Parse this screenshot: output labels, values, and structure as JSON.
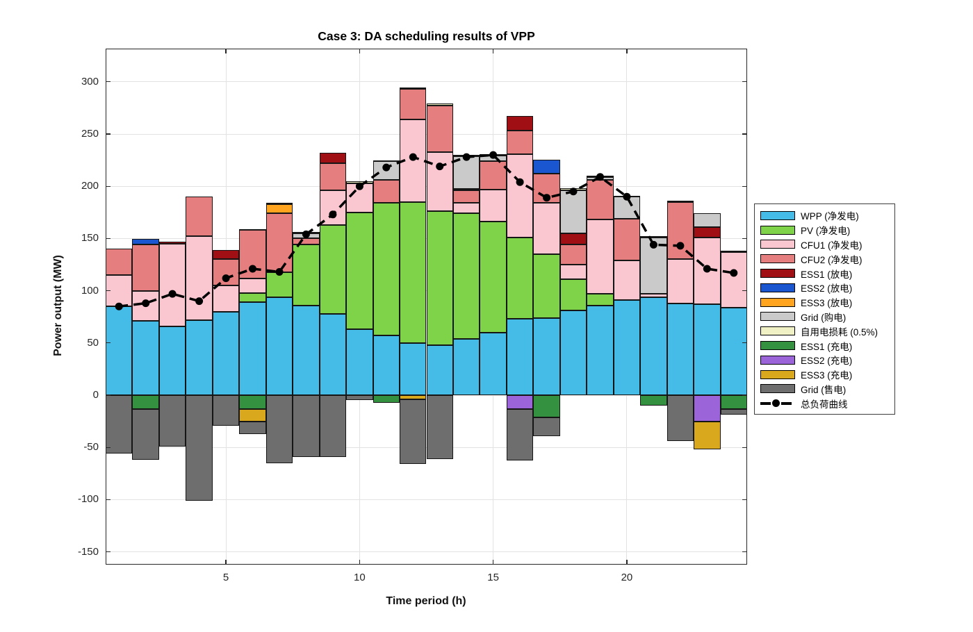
{
  "title": "Case 3: DA scheduling results of VPP",
  "xlabel": "Time period (h)",
  "ylabel": "Power output (MW)",
  "chart_data": {
    "type": "bar",
    "stacked": true,
    "grid": true,
    "legend_position": "right-outside",
    "x": [
      1,
      2,
      3,
      4,
      5,
      6,
      7,
      8,
      9,
      10,
      11,
      12,
      13,
      14,
      15,
      16,
      17,
      18,
      19,
      20,
      21,
      22,
      23,
      24
    ],
    "xticks": [
      5,
      10,
      15,
      20
    ],
    "yticks": [
      300,
      250,
      200,
      150,
      100,
      50,
      0,
      -50,
      -100,
      -150
    ],
    "xlim": [
      0.5,
      24.5
    ],
    "ylim": [
      -162,
      332
    ],
    "series": [
      {
        "name": "WPP (净发电)",
        "color": "#45BCE8",
        "values": [
          85,
          71,
          66,
          72,
          80,
          89,
          94,
          86,
          78,
          63,
          57,
          50,
          48,
          54,
          60,
          73,
          74,
          81,
          86,
          91,
          94,
          88,
          87,
          84
        ]
      },
      {
        "name": "PV (净发电)",
        "color": "#7ED348",
        "values": [
          0,
          0,
          0,
          0,
          0,
          9,
          24,
          58,
          85,
          112,
          127,
          135,
          128,
          120,
          106,
          78,
          61,
          30,
          11,
          0,
          0,
          0,
          0,
          0
        ]
      },
      {
        "name": "CFU1 (净发电)",
        "color": "#FAC7D1",
        "values": [
          30,
          29,
          79,
          80,
          25,
          14,
          0,
          0,
          33,
          28,
          0,
          79,
          57,
          10,
          31,
          80,
          49,
          14,
          71,
          38,
          3,
          42,
          64,
          53
        ]
      },
      {
        "name": "CFU2 (净发电)",
        "color": "#E57E7E",
        "values": [
          25,
          44,
          0,
          38,
          25,
          46,
          56,
          6,
          26,
          0,
          22,
          29,
          44,
          12,
          27,
          22,
          28,
          19,
          38,
          40,
          0,
          55,
          0,
          0
        ]
      },
      {
        "name": "ESS1 (放电)",
        "color": "#A00F14",
        "values": [
          0,
          0,
          2,
          0,
          9,
          0,
          0,
          0,
          10,
          0,
          0,
          0,
          0,
          0,
          0,
          14,
          0,
          11,
          0,
          0,
          0,
          0,
          10,
          0
        ]
      },
      {
        "name": "ESS2 (放电)",
        "color": "#1A56D0",
        "values": [
          0,
          5.5,
          0,
          0,
          0,
          0,
          0,
          0,
          0,
          0,
          0,
          0,
          0,
          0,
          0,
          0,
          13.5,
          0,
          0,
          0,
          0,
          0,
          0,
          0
        ]
      },
      {
        "name": "ESS3 (放电)",
        "color": "#FFA41E",
        "values": [
          0,
          0,
          0,
          0,
          0,
          0,
          9,
          0,
          0,
          0,
          0,
          0,
          0,
          1.5,
          0,
          0,
          0,
          0,
          0,
          0,
          0,
          0,
          0,
          0
        ]
      },
      {
        "name": "Grid (购电)",
        "color": "#CACACA",
        "values": [
          0,
          0,
          0,
          0,
          0,
          0,
          0,
          5,
          0,
          0,
          18,
          0,
          0,
          31,
          5.5,
          0,
          0,
          41,
          3,
          21,
          54,
          0,
          13,
          0
        ]
      },
      {
        "name": "自用电损耗 (0.5%)",
        "color": "#F0F1C5",
        "values": [
          0,
          0,
          0,
          0,
          0,
          1,
          1.4,
          1,
          0,
          2,
          1,
          1.5,
          2,
          1.5,
          1.5,
          0,
          0,
          2,
          1,
          1,
          1,
          1.5,
          0,
          1.5
        ]
      },
      {
        "name": "ESS1 (充电)",
        "color": "#339140",
        "values": [
          0,
          -13,
          0,
          0,
          0,
          -13,
          0,
          0,
          0,
          0,
          -7,
          0,
          0,
          0,
          0,
          0,
          -21,
          0,
          0,
          0,
          -10,
          0,
          0,
          -13
        ]
      },
      {
        "name": "ESS2 (充电)",
        "color": "#9C64D9",
        "values": [
          0,
          0,
          0,
          0,
          0,
          0,
          0,
          0,
          0,
          0,
          0,
          0,
          0,
          0,
          0,
          -13.5,
          0,
          0,
          0,
          0,
          0,
          0,
          -25,
          0
        ]
      },
      {
        "name": "ESS3 (充电)",
        "color": "#D9A81C",
        "values": [
          0,
          0,
          0,
          0,
          0,
          -12,
          0,
          0,
          0,
          0,
          0,
          -4,
          0,
          0,
          0,
          0,
          0,
          0,
          0,
          0,
          0,
          0,
          -27,
          0
        ]
      },
      {
        "name": "Grid (售电)",
        "color": "#6E6E6E",
        "values": [
          -56,
          -49,
          -49,
          -101,
          -29,
          -12,
          -65,
          -59,
          -59,
          -4.5,
          0,
          -62,
          -61,
          0,
          0,
          -49,
          -18,
          0,
          0,
          0,
          0,
          -44,
          0,
          -5.5
        ]
      }
    ],
    "load_curve": {
      "name": "总负荷曲线",
      "color": "#000000",
      "style": "dashed-with-markers",
      "values": [
        85,
        88,
        97,
        90,
        112,
        121,
        118,
        154,
        173,
        200,
        218,
        228,
        219,
        228,
        230,
        204,
        189,
        195,
        209,
        190,
        144,
        143,
        121,
        117
      ]
    }
  }
}
